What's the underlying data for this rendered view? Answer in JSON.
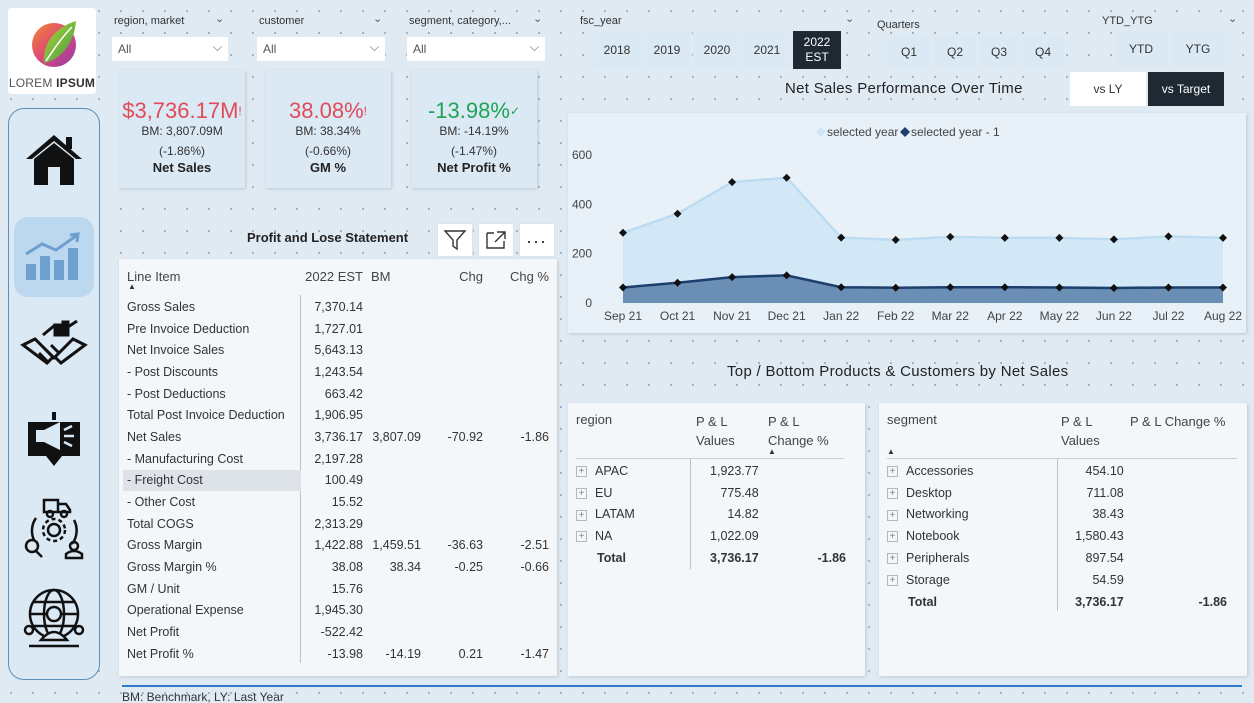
{
  "logo": {
    "text_a": "LOREM ",
    "text_b": "IPSUM"
  },
  "slicers": [
    {
      "label": "region, market",
      "value": "All"
    },
    {
      "label": "customer",
      "value": "All"
    },
    {
      "label": "segment, category,...",
      "value": "All"
    }
  ],
  "fsc_year": {
    "label": "fsc_year",
    "years": [
      "2018",
      "2019",
      "2020",
      "2021",
      "2022 EST"
    ],
    "selected": "2022 EST"
  },
  "quarters": {
    "label": "Quarters",
    "items": [
      "Q1",
      "Q2",
      "Q3",
      "Q4"
    ]
  },
  "ytd": {
    "label": "YTD_YTG",
    "items": [
      "YTD",
      "YTG"
    ]
  },
  "compare": {
    "items": [
      "vs LY",
      "vs Target"
    ],
    "selected": "vs Target"
  },
  "kpis": [
    {
      "value": "$3,736.17M",
      "mark": "!",
      "bm": "BM: 3,807.09M",
      "chg": "(-1.86%)",
      "name": "Net Sales",
      "status": "red"
    },
    {
      "value": "38.08%",
      "mark": "!",
      "bm": "BM: 38.34%",
      "chg": "(-0.66%)",
      "name": "GM %",
      "status": "red"
    },
    {
      "value": "-13.98%",
      "mark": "✓",
      "bm": "BM: -14.19%",
      "chg": "(-1.47%)",
      "name": "Net Profit %",
      "status": "green"
    }
  ],
  "pl": {
    "title": "Profit and Lose Statement",
    "headers": [
      "Line Item",
      "2022 EST",
      "BM",
      "Chg",
      "Chg %"
    ],
    "rows": [
      [
        "Gross Sales",
        "7,370.14",
        "",
        "",
        ""
      ],
      [
        "Pre Invoice Deduction",
        "1,727.01",
        "",
        "",
        ""
      ],
      [
        "Net Invoice Sales",
        "5,643.13",
        "",
        "",
        ""
      ],
      [
        "- Post Discounts",
        "1,243.54",
        "",
        "",
        ""
      ],
      [
        "- Post Deductions",
        "663.42",
        "",
        "",
        ""
      ],
      [
        "Total Post Invoice Deduction",
        "1,906.95",
        "",
        "",
        ""
      ],
      [
        "Net Sales",
        "3,736.17",
        "3,807.09",
        "-70.92",
        "-1.86"
      ],
      [
        "- Manufacturing Cost",
        "2,197.28",
        "",
        "",
        ""
      ],
      [
        "- Freight Cost",
        "100.49",
        "",
        "",
        ""
      ],
      [
        "- Other Cost",
        "15.52",
        "",
        "",
        ""
      ],
      [
        "Total COGS",
        "2,313.29",
        "",
        "",
        ""
      ],
      [
        "Gross Margin",
        "1,422.88",
        "1,459.51",
        "-36.63",
        "-2.51"
      ],
      [
        "Gross Margin %",
        "38.08",
        "38.34",
        "-0.25",
        "-0.66"
      ],
      [
        "GM / Unit",
        "15.76",
        "",
        "",
        ""
      ],
      [
        "Operational Expense",
        "1,945.30",
        "",
        "",
        ""
      ],
      [
        "Net Profit",
        "-522.42",
        "",
        "",
        ""
      ],
      [
        "Net Profit %",
        "-13.98",
        "-14.19",
        "0.21",
        "-1.47"
      ]
    ]
  },
  "chart": {
    "title": "Net Sales Performance Over Time",
    "colors": {
      "selected": "#cfe6f6",
      "prev": "#1d3f6e"
    }
  },
  "chart_data": {
    "type": "area",
    "x": [
      "Sep 21",
      "Oct 21",
      "Nov 21",
      "Dec 21",
      "Jan 22",
      "Feb 22",
      "Mar 22",
      "Apr 22",
      "May 22",
      "Jun 22",
      "Jul 22",
      "Aug 22"
    ],
    "ylim": [
      0,
      600
    ],
    "yticks": [
      0,
      200,
      400,
      600
    ],
    "series": [
      {
        "name": "selected year",
        "values": [
          285,
          362,
          490,
          508,
          265,
          256,
          268,
          264,
          264,
          258,
          270,
          264
        ]
      },
      {
        "name": "selected year - 1",
        "values": [
          63,
          82,
          105,
          112,
          64,
          62,
          64,
          64,
          63,
          61,
          63,
          63
        ]
      }
    ],
    "legend": "top-center",
    "grid": false
  },
  "topbottom": {
    "title": "Top / Bottom Products & Customers by Net Sales"
  },
  "region_table": {
    "headers": [
      "region",
      "P & L Values",
      "P & L Change %"
    ],
    "rows": [
      [
        "APAC",
        "1,923.77",
        ""
      ],
      [
        "EU",
        "775.48",
        ""
      ],
      [
        "LATAM",
        "14.82",
        ""
      ],
      [
        "NA",
        "1,022.09",
        ""
      ]
    ],
    "total": [
      "Total",
      "3,736.17",
      "-1.86"
    ]
  },
  "segment_table": {
    "headers": [
      "segment",
      "P & L Values",
      "P & L Change %"
    ],
    "rows": [
      [
        "Accessories",
        "454.10",
        ""
      ],
      [
        "Desktop",
        "711.08",
        ""
      ],
      [
        "Networking",
        "38.43",
        ""
      ],
      [
        "Notebook",
        "1,580.43",
        ""
      ],
      [
        "Peripherals",
        "897.54",
        ""
      ],
      [
        "Storage",
        "54.59",
        ""
      ]
    ],
    "total": [
      "Total",
      "3,736.17",
      "-1.86"
    ]
  },
  "footer": "BM: Benchmark, LY: Last Year"
}
